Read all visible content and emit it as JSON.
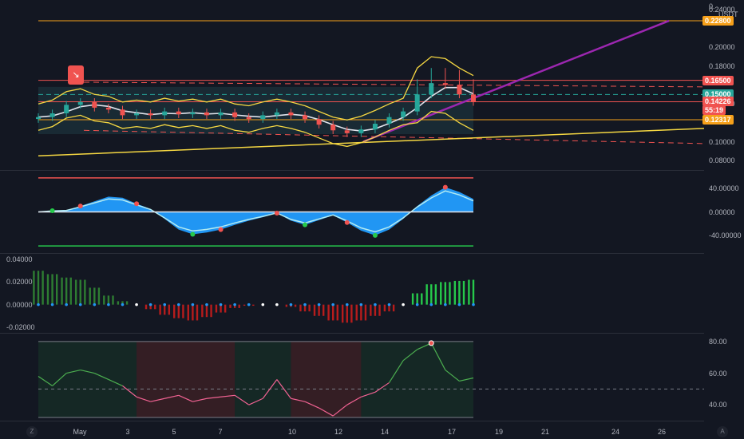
{
  "currency": "USDT",
  "axis_top_label": "0.",
  "price_axis": [
    "0.24000",
    "0.20000",
    "0.18000",
    "0.14000",
    "0.10000",
    "0.08000"
  ],
  "price_tags": [
    {
      "label": "0.22800",
      "color": "#f6a01a"
    },
    {
      "label": "0.16500",
      "color": "#f05350"
    },
    {
      "label": "0.15000",
      "color": "#26a69a"
    },
    {
      "label": "0.14226",
      "color": "#f05350"
    },
    {
      "label": "55:19",
      "color": "#f05350"
    },
    {
      "label": "0.12317",
      "color": "#f6a01a"
    }
  ],
  "osc_axis": [
    "40.00000",
    "0.00000",
    "-40.00000"
  ],
  "hist_axis": [
    "0.04000",
    "0.02000",
    "0.00000",
    "-0.02000"
  ],
  "rsi_axis": [
    "80.00",
    "60.00",
    "40.00"
  ],
  "x_axis": [
    "May",
    "3",
    "5",
    "7",
    "10",
    "12",
    "14",
    "17",
    "19",
    "21",
    "24",
    "26"
  ],
  "corner_left": "Z",
  "corner_right": "A",
  "signal_icon": "down-arrow-icon",
  "colors": {
    "up": "#26a69a",
    "down": "#ef5350",
    "accent": "#f6a01a",
    "trend": "#9c27b0",
    "band": "#f5d742"
  },
  "chart_data": {
    "type": "candlestick",
    "x_range": [
      "Apr 29",
      "May 26"
    ],
    "panels": [
      {
        "name": "price",
        "ylim": [
          0.07,
          0.25
        ],
        "levels": [
          0.228,
          0.165,
          0.15,
          0.1423,
          0.1232
        ],
        "close": [
          0.126,
          0.13,
          0.139,
          0.142,
          0.136,
          0.134,
          0.128,
          0.13,
          0.128,
          0.132,
          0.129,
          0.131,
          0.128,
          0.131,
          0.126,
          0.124,
          0.128,
          0.131,
          0.128,
          0.124,
          0.118,
          0.112,
          0.109,
          0.113,
          0.119,
          0.126,
          0.132,
          0.15,
          0.162,
          0.16,
          0.15,
          0.142
        ]
      },
      {
        "name": "oscillator",
        "ylim": [
          -70,
          70
        ],
        "values": [
          0,
          2,
          3,
          10,
          18,
          26,
          24,
          14,
          5,
          -12,
          -30,
          -38,
          -35,
          -30,
          -22,
          -15,
          -9,
          -2,
          -15,
          -22,
          -14,
          -6,
          -18,
          -32,
          -40,
          -30,
          -12,
          10,
          28,
          42,
          34,
          22
        ]
      },
      {
        "name": "histogram",
        "ylim": [
          -0.025,
          0.045
        ],
        "values": [
          0.03,
          0.027,
          0.024,
          0.022,
          0.015,
          0.008,
          0.003,
          0.0,
          -0.004,
          -0.009,
          -0.012,
          -0.014,
          -0.011,
          -0.007,
          -0.003,
          -0.001,
          0.0,
          0.0,
          -0.002,
          -0.006,
          -0.01,
          -0.014,
          -0.016,
          -0.014,
          -0.01,
          -0.006,
          0.0,
          0.01,
          0.018,
          0.02,
          0.021,
          0.022
        ]
      },
      {
        "name": "rsi",
        "ylim": [
          30,
          85
        ],
        "values": [
          58,
          52,
          60,
          62,
          60,
          56,
          52,
          45,
          42,
          44,
          46,
          42,
          44,
          45,
          46,
          40,
          44,
          56,
          44,
          42,
          38,
          33,
          40,
          45,
          48,
          54,
          68,
          75,
          79,
          62,
          55,
          57
        ]
      }
    ]
  }
}
